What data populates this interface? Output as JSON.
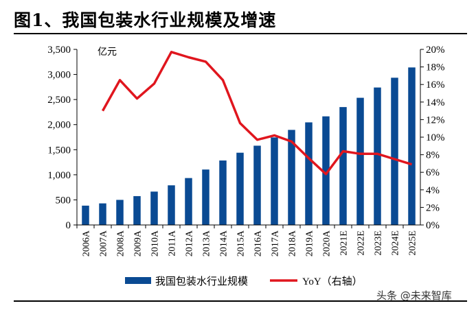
{
  "header": {
    "title": "图1、我国包装水行业规模及增速"
  },
  "watermark": {
    "text": "头条 @未来智库"
  },
  "colors": {
    "bar": "#0a4a93",
    "line": "#e0161e",
    "axis": "#000000"
  },
  "chart_data": {
    "type": "bar",
    "categories": [
      "2006A",
      "2007A",
      "2008A",
      "2009A",
      "2010A",
      "2011A",
      "2012A",
      "2013A",
      "2014A",
      "2015A",
      "2016A",
      "2017A",
      "2018A",
      "2019A",
      "2020A",
      "2021E",
      "2022E",
      "2023E",
      "2024E",
      "2025E"
    ],
    "series": [
      {
        "name": "我国包装水行业规模",
        "type": "bar",
        "axis": "left",
        "values": [
          385,
          430,
          500,
          575,
          665,
          790,
          935,
          1105,
          1285,
          1440,
          1580,
          1745,
          1895,
          2045,
          2165,
          2350,
          2535,
          2740,
          2935,
          3140
        ]
      },
      {
        "name": "YoY（右轴）",
        "type": "line",
        "axis": "right",
        "values": [
          null,
          13.0,
          16.5,
          14.4,
          16.1,
          19.7,
          19.1,
          18.6,
          16.5,
          11.6,
          9.7,
          10.2,
          9.5,
          7.6,
          5.8,
          8.4,
          8.1,
          8.1,
          7.5,
          6.9
        ]
      }
    ],
    "unit_label": "亿元",
    "ylim_left": [
      0,
      3500
    ],
    "yticks_left": [
      "0",
      "500",
      "1,000",
      "1,500",
      "2,000",
      "2,500",
      "3,000",
      "3,500"
    ],
    "ylim_right": [
      0,
      20
    ],
    "yticks_right": [
      "0%",
      "2%",
      "4%",
      "6%",
      "8%",
      "10%",
      "12%",
      "14%",
      "16%",
      "18%",
      "20%"
    ],
    "legend": {
      "bar_label": "我国包装水行业规模",
      "line_label": "YoY（右轴）",
      "placement": "bottom"
    }
  }
}
